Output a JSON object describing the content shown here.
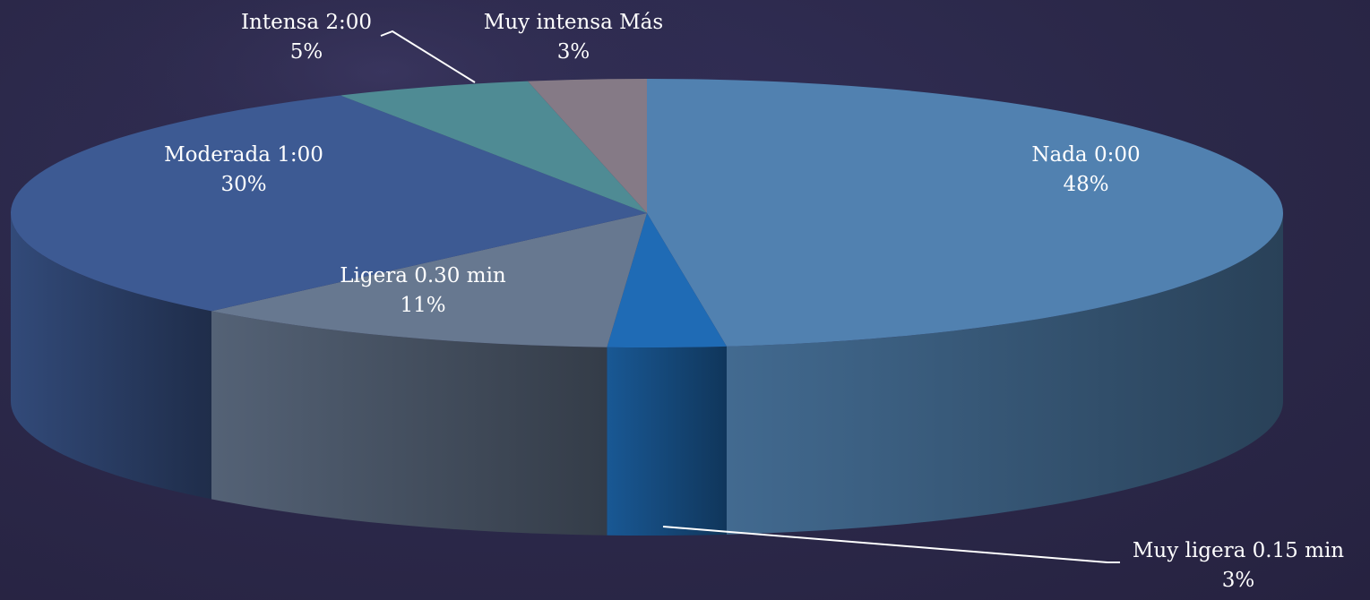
{
  "chart_data": {
    "type": "pie",
    "style": "3d",
    "title": "",
    "slices": [
      {
        "name": "Nada 0:00",
        "value": 48,
        "percent_label": "48%",
        "color": "#5181b0"
      },
      {
        "name": "Muy ligera 0.15 min",
        "value": 3,
        "percent_label": "3%",
        "color": "#1f6bb5"
      },
      {
        "name": "Ligera 0.30 min",
        "value": 11,
        "percent_label": "11%",
        "color": "#677890"
      },
      {
        "name": "Moderada 1:00",
        "value": 30,
        "percent_label": "30%",
        "color": "#3d5a93"
      },
      {
        "name": "Intensa 2:00",
        "value": 5,
        "percent_label": "5%",
        "color": "#4f8b94"
      },
      {
        "name": "Muy intensa Más",
        "value": 3,
        "percent_label": "3%",
        "color": "#857a86"
      }
    ]
  },
  "background_color": "#2a2746"
}
